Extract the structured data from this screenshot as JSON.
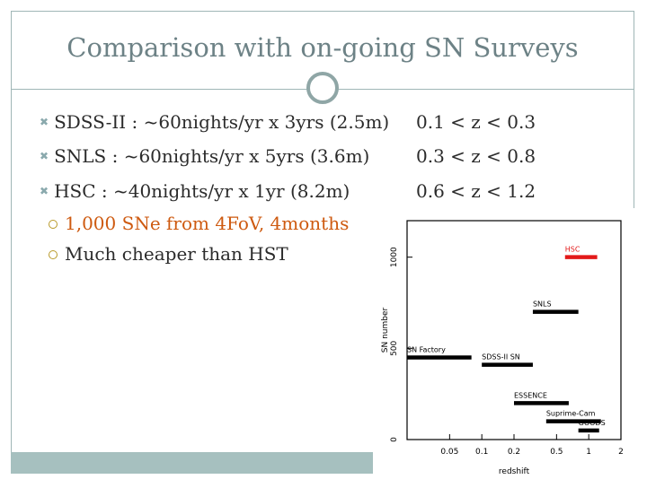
{
  "slide": {
    "title": "Comparison with on-going SN Surveys",
    "bullets": [
      {
        "text": "SDSS-II : ~60nights/yr x 3yrs (2.5m)",
        "range": "0.1 < z < 0.3"
      },
      {
        "text": "SNLS : ~60nights/yr x 5yrs (3.6m)",
        "range": "0.3 < z < 0.8"
      },
      {
        "text": "HSC : ~40nights/yr x 1yr (8.2m)",
        "range": "0.6 < z < 1.2"
      }
    ],
    "sub_bullets": [
      {
        "text": "1,000 SNe from 4FoV, 4months"
      },
      {
        "text": "Much cheaper than HST"
      }
    ]
  },
  "colors": {
    "title": "#6d8286",
    "accent": "#a6c0bf",
    "hsc_line": "#e31919",
    "orange": "#ce5a10"
  },
  "chart_data": {
    "type": "line",
    "title": "",
    "xlabel": "redshift",
    "ylabel": "SN number",
    "x_scale": "log",
    "xlim": [
      0.02,
      2
    ],
    "ylim": [
      0,
      1200
    ],
    "x_ticks": [
      {
        "value": 0.05,
        "label": "0.05"
      },
      {
        "value": 0.1,
        "label": "0.1"
      },
      {
        "value": 0.2,
        "label": "0.2"
      },
      {
        "value": 0.5,
        "label": "0.5"
      },
      {
        "value": 1,
        "label": "1"
      },
      {
        "value": 2,
        "label": "2"
      }
    ],
    "y_ticks": [
      {
        "value": 0,
        "label": "0"
      },
      {
        "value": 500,
        "label": "500"
      },
      {
        "value": 1000,
        "label": "1000"
      }
    ],
    "series": [
      {
        "name": "HSC",
        "x": [
          0.6,
          1.2
        ],
        "y": 1000,
        "color": "#e31919"
      },
      {
        "name": "SNLS",
        "x": [
          0.3,
          0.8
        ],
        "y": 700,
        "color": "#000000"
      },
      {
        "name": "SN Factory",
        "x": [
          0.02,
          0.08
        ],
        "y": 450,
        "color": "#000000"
      },
      {
        "name": "SDSS-II SN",
        "x": [
          0.1,
          0.3
        ],
        "y": 410,
        "color": "#000000"
      },
      {
        "name": "ESSENCE",
        "x": [
          0.2,
          0.65
        ],
        "y": 200,
        "color": "#000000"
      },
      {
        "name": "Suprime-Cam",
        "x": [
          0.4,
          1.3
        ],
        "y": 100,
        "color": "#000000"
      },
      {
        "name": "GOODS",
        "x": [
          0.8,
          1.25
        ],
        "y": 50,
        "color": "#000000"
      }
    ]
  }
}
